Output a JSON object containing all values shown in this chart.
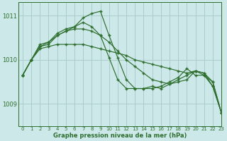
{
  "title": "Graphe pression niveau de la mer (hPa)",
  "bg_color": "#cce8e8",
  "grid_color": "#aacccc",
  "line_color": "#2d6e2d",
  "xlim": [
    -0.5,
    23
  ],
  "ylim": [
    1008.5,
    1011.3
  ],
  "yticks": [
    1009,
    1010,
    1011
  ],
  "xticks": [
    0,
    1,
    2,
    3,
    4,
    5,
    6,
    7,
    8,
    9,
    10,
    11,
    12,
    13,
    14,
    15,
    16,
    17,
    18,
    19,
    20,
    21,
    22,
    23
  ],
  "series": [
    [
      1009.65,
      1010.0,
      1010.25,
      1010.3,
      1010.35,
      1010.35,
      1010.35,
      1010.35,
      1010.3,
      1010.25,
      1010.2,
      1010.15,
      1010.1,
      1010.0,
      1009.95,
      1009.9,
      1009.85,
      1009.8,
      1009.75,
      1009.7,
      1009.75,
      1009.65,
      1009.5,
      1008.8
    ],
    [
      1009.65,
      1010.0,
      1010.3,
      1010.35,
      1010.55,
      1010.65,
      1010.7,
      1010.7,
      1010.65,
      1010.55,
      1010.4,
      1010.2,
      1010.0,
      1009.85,
      1009.7,
      1009.55,
      1009.5,
      1009.45,
      1009.5,
      1009.55,
      1009.75,
      1009.7,
      1009.5,
      1008.8
    ],
    [
      1009.65,
      1010.0,
      1010.35,
      1010.4,
      1010.6,
      1010.7,
      1010.75,
      1010.85,
      1010.75,
      1010.55,
      1010.05,
      1009.55,
      1009.35,
      1009.35,
      1009.35,
      1009.4,
      1009.35,
      1009.45,
      1009.55,
      1009.65,
      1009.75,
      1009.7,
      1009.4,
      1008.8
    ],
    [
      1009.65,
      1010.0,
      1010.3,
      1010.4,
      1010.55,
      1010.65,
      1010.75,
      1010.95,
      1011.05,
      1011.1,
      1010.55,
      1010.05,
      1009.55,
      1009.35,
      1009.35,
      1009.35,
      1009.4,
      1009.5,
      1009.6,
      1009.8,
      1009.65,
      1009.65,
      1009.4,
      1008.8
    ]
  ]
}
